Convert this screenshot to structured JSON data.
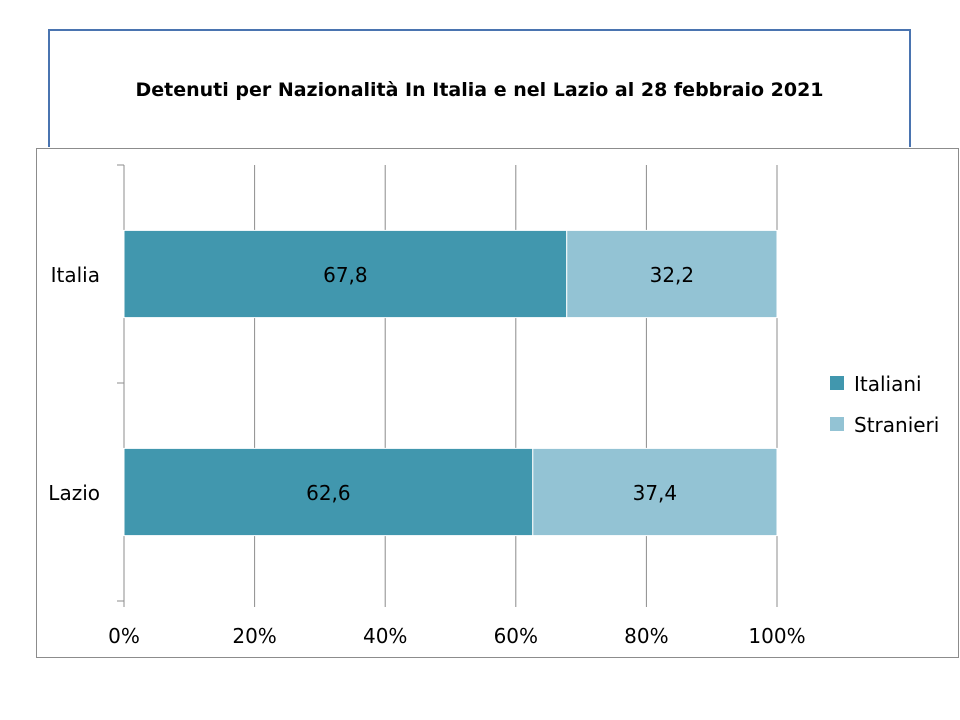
{
  "chart_data": {
    "type": "bar",
    "orientation": "horizontal",
    "stacked": "percent",
    "title": "Detenuti per Nazionalità In Italia e nel Lazio al 28 febbraio 2021",
    "categories": [
      "Italia",
      "Lazio"
    ],
    "series": [
      {
        "name": "Italiani",
        "values": [
          67.8,
          62.6
        ],
        "labels": [
          "67,8",
          "62,6"
        ],
        "color": "#4197ae"
      },
      {
        "name": "Stranieri",
        "values": [
          32.2,
          37.4
        ],
        "labels": [
          "32,2",
          "37,4"
        ],
        "color": "#93c3d4"
      }
    ],
    "xlim": [
      0,
      100
    ],
    "xticks": [
      "0%",
      "20%",
      "40%",
      "60%",
      "80%",
      "100%"
    ],
    "xlabel": "",
    "ylabel": "",
    "grid": "vertical",
    "legend": "right"
  }
}
